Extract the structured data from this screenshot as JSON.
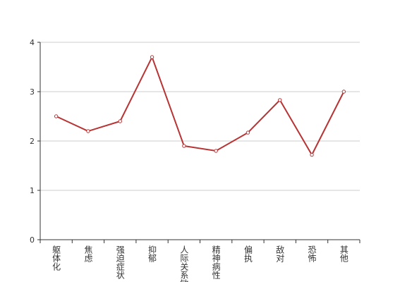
{
  "chart_data": {
    "type": "line",
    "categories": [
      "躯体化",
      "焦虑",
      "强迫症状",
      "抑郁",
      "人际关系敏感",
      "精神病性",
      "偏执",
      "敌对",
      "恐怖",
      "其他"
    ],
    "series": [
      {
        "name": "",
        "color": "#b83333",
        "values": [
          2.5,
          2.2,
          2.4,
          3.7,
          1.9,
          1.8,
          2.17,
          2.83,
          1.72,
          3.0
        ]
      }
    ],
    "ylim": [
      0,
      4
    ],
    "yticks": [
      0,
      1,
      2,
      3,
      4
    ],
    "grid": true
  }
}
